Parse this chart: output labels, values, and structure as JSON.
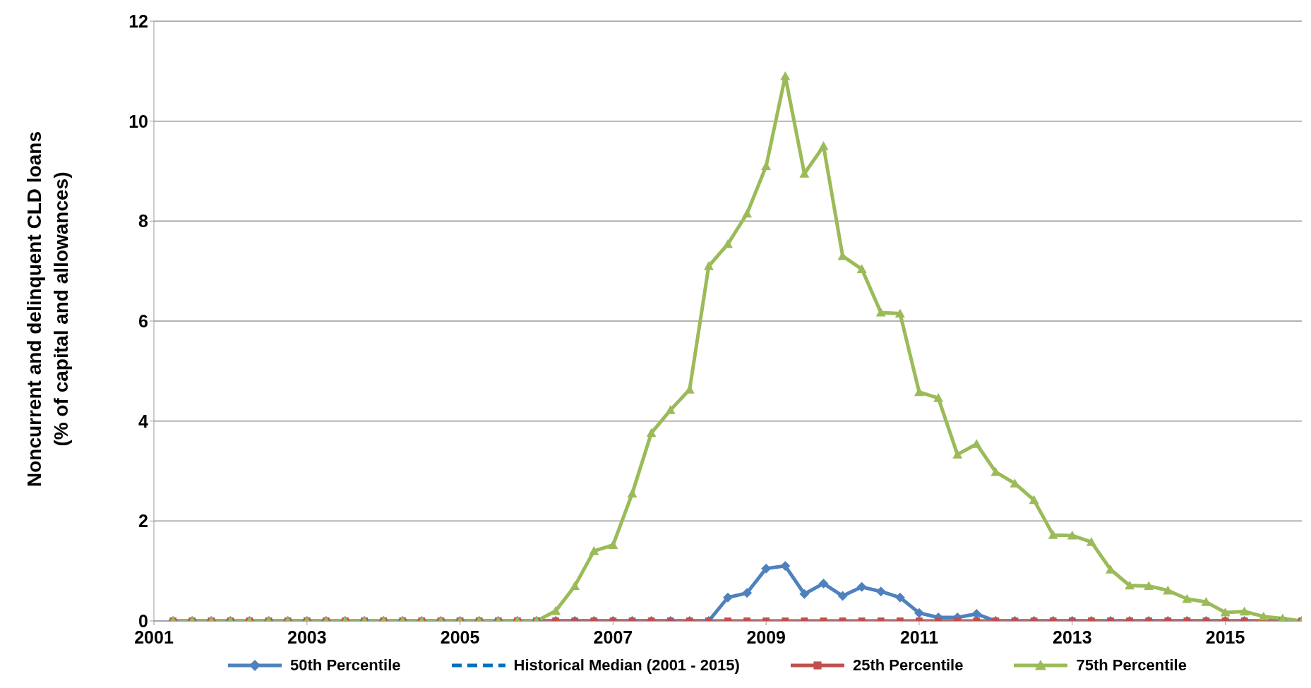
{
  "chart_data": {
    "type": "line",
    "ylabel": "Noncurrent and delinquent CLD loans\n(% of capital and allowances)",
    "x": [
      2001.25,
      2001.5,
      2001.75,
      2002,
      2002.25,
      2002.5,
      2002.75,
      2003,
      2003.25,
      2003.5,
      2003.75,
      2004,
      2004.25,
      2004.5,
      2004.75,
      2005,
      2005.25,
      2005.5,
      2005.75,
      2006,
      2006.25,
      2006.5,
      2006.75,
      2007,
      2007.25,
      2007.5,
      2007.75,
      2008,
      2008.25,
      2008.5,
      2008.75,
      2009,
      2009.25,
      2009.5,
      2009.75,
      2010,
      2010.25,
      2010.5,
      2010.75,
      2011,
      2011.25,
      2011.5,
      2011.75,
      2012,
      2012.25,
      2012.5,
      2012.75,
      2013,
      2013.25,
      2013.5,
      2013.75,
      2014,
      2014.25,
      2014.5,
      2014.75,
      2015,
      2015.25,
      2015.5,
      2015.75,
      2016
    ],
    "series": [
      {
        "name": "50th Percentile",
        "color": "#4f81bd",
        "marker": "diamond",
        "values": [
          0,
          0,
          0,
          0,
          0,
          0,
          0,
          0,
          0,
          0,
          0,
          0,
          0,
          0,
          0,
          0,
          0,
          0,
          0,
          0,
          0,
          0,
          0,
          0,
          0,
          0,
          0,
          0,
          0,
          0.47,
          0.56,
          1.05,
          1.1,
          0.54,
          0.75,
          0.5,
          0.68,
          0.59,
          0.47,
          0.16,
          0.07,
          0.07,
          0.14,
          0,
          0,
          0,
          0,
          0,
          0,
          0,
          0,
          0,
          0,
          0,
          0,
          0,
          0,
          0,
          0,
          0
        ]
      },
      {
        "name": "Historical Median (2001 - 2015)",
        "color": "#0070c0",
        "marker": "none",
        "line_style": "dashed",
        "values": [
          null,
          null,
          null,
          null,
          null,
          null,
          null,
          null,
          null,
          null,
          null,
          null,
          null,
          null,
          null,
          null,
          null,
          null,
          null,
          null,
          null,
          null,
          null,
          null,
          null,
          null,
          null,
          null,
          null,
          null,
          null,
          null,
          null,
          null,
          null,
          null,
          null,
          null,
          null,
          null,
          null,
          null,
          null,
          null,
          null,
          null,
          null,
          null,
          null,
          null,
          null,
          null,
          null,
          null,
          null,
          null,
          null,
          null,
          null,
          null
        ]
      },
      {
        "name": "25th Percentile",
        "color": "#c0504d",
        "marker": "square",
        "values": [
          0,
          0,
          0,
          0,
          0,
          0,
          0,
          0,
          0,
          0,
          0,
          0,
          0,
          0,
          0,
          0,
          0,
          0,
          0,
          0,
          0,
          0,
          0,
          0,
          0,
          0,
          0,
          0,
          0,
          0,
          0,
          0,
          0,
          0,
          0,
          0,
          0,
          0,
          0,
          0,
          0,
          0,
          0,
          0,
          0,
          0,
          0,
          0,
          0,
          0,
          0,
          0,
          0,
          0,
          0,
          0,
          0,
          0,
          0,
          0
        ]
      },
      {
        "name": "75th Percentile",
        "color": "#9bbb59",
        "marker": "triangle",
        "values": [
          0,
          0,
          0,
          0,
          0,
          0,
          0,
          0,
          0,
          0,
          0,
          0,
          0,
          0,
          0,
          0,
          0,
          0,
          0,
          0,
          0.2,
          0.7,
          1.4,
          1.52,
          2.55,
          3.76,
          4.22,
          4.63,
          7.1,
          7.54,
          8.15,
          9.1,
          10.9,
          8.95,
          9.5,
          7.3,
          7.04,
          6.17,
          6.15,
          4.58,
          4.46,
          3.33,
          3.54,
          2.98,
          2.75,
          2.42,
          1.72,
          1.71,
          1.58,
          1.03,
          0.71,
          0.7,
          0.61,
          0.44,
          0.38,
          0.17,
          0.19,
          0.09,
          0.05,
          0
        ]
      }
    ],
    "xlim": [
      2001,
      2016
    ],
    "xticks": [
      2001,
      2003,
      2005,
      2007,
      2009,
      2011,
      2013,
      2015
    ],
    "ylim": [
      0,
      12
    ],
    "yticks": [
      0,
      2,
      4,
      6,
      8,
      10,
      12
    ],
    "grid": "y",
    "legend": "bottom"
  }
}
